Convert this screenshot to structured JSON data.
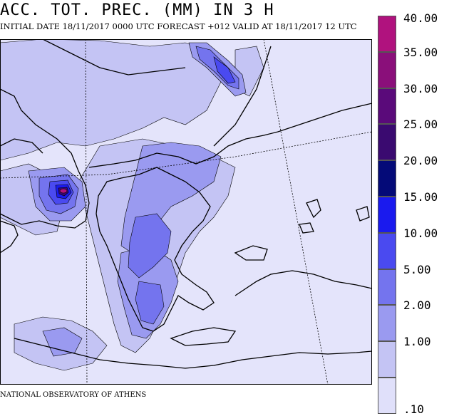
{
  "header": {
    "title": "ACC. TOT. PREC. (MM) IN 3 H",
    "subtitle": "INITIAL DATE 18/11/2017   0000 UTC FORECAST +012 VALID AT  18/11/2017  12 UTC"
  },
  "footer": {
    "credit": "NATIONAL OBSERVATORY OF ATHENS"
  },
  "legend": {
    "levels": [
      {
        "label": "40.00",
        "color": "#b0127e"
      },
      {
        "label": "35.00",
        "color": "#8a0f7a"
      },
      {
        "label": "30.00",
        "color": "#5a0a7a"
      },
      {
        "label": "25.00",
        "color": "#3a0a70"
      },
      {
        "label": "20.00",
        "color": "#040a78"
      },
      {
        "label": "15.00",
        "color": "#1a1aee"
      },
      {
        "label": "10.00",
        "color": "#4a4af0"
      },
      {
        "label": "5.00",
        "color": "#7474ee"
      },
      {
        "label": "2.00",
        "color": "#9a9af0"
      },
      {
        "label": "1.00",
        "color": "#c4c4f4"
      },
      {
        "label": ".10",
        "color": "#e0e0fa"
      }
    ]
  },
  "map": {
    "background_color": "#e4e4fb",
    "coast_color": "#000000"
  }
}
